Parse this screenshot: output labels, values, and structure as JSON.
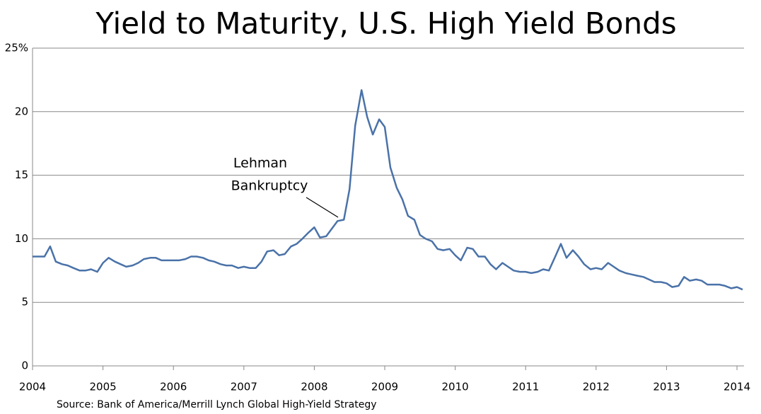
{
  "chart_data": {
    "type": "line",
    "title": "Yield to Maturity, U.S. High Yield Bonds",
    "source": "Source: Bank of America/Merrill Lynch Global High-Yield Strategy",
    "annotation": [
      "Lehman",
      "Bankruptcy"
    ],
    "xlim": [
      2004,
      2014.1
    ],
    "xticks": [
      2004,
      2005,
      2006,
      2007,
      2008,
      2009,
      2010,
      2011,
      2012,
      2013,
      2014
    ],
    "ylim": [
      0,
      25
    ],
    "yticks": [
      0,
      5,
      10,
      15,
      20,
      {
        "value": 25,
        "label": "25%"
      }
    ],
    "grid": true,
    "series": [
      {
        "color": "#4a72a8",
        "x": [
          2004.0,
          2004.08,
          2004.17,
          2004.25,
          2004.33,
          2004.42,
          2004.5,
          2004.58,
          2004.67,
          2004.75,
          2004.83,
          2004.92,
          2005.0,
          2005.08,
          2005.17,
          2005.25,
          2005.33,
          2005.42,
          2005.5,
          2005.58,
          2005.67,
          2005.75,
          2005.83,
          2005.92,
          2006.0,
          2006.08,
          2006.17,
          2006.25,
          2006.33,
          2006.42,
          2006.5,
          2006.58,
          2006.67,
          2006.75,
          2006.83,
          2006.92,
          2007.0,
          2007.08,
          2007.17,
          2007.25,
          2007.33,
          2007.42,
          2007.5,
          2007.58,
          2007.67,
          2007.75,
          2007.83,
          2007.92,
          2008.0,
          2008.08,
          2008.17,
          2008.25,
          2008.33,
          2008.42,
          2008.5,
          2008.58,
          2008.67,
          2008.75,
          2008.83,
          2008.92,
          2009.0,
          2009.08,
          2009.17,
          2009.25,
          2009.33,
          2009.42,
          2009.5,
          2009.58,
          2009.67,
          2009.75,
          2009.83,
          2009.92,
          2010.0,
          2010.08,
          2010.17,
          2010.25,
          2010.33,
          2010.42,
          2010.5,
          2010.58,
          2010.67,
          2010.75,
          2010.83,
          2010.92,
          2011.0,
          2011.08,
          2011.17,
          2011.25,
          2011.33,
          2011.42,
          2011.5,
          2011.58,
          2011.67,
          2011.75,
          2011.83,
          2011.92,
          2012.0,
          2012.08,
          2012.17,
          2012.25,
          2012.33,
          2012.42,
          2012.5,
          2012.58,
          2012.67,
          2012.75,
          2012.83,
          2012.92,
          2013.0,
          2013.08,
          2013.17,
          2013.25,
          2013.33,
          2013.42,
          2013.5,
          2013.58,
          2013.67,
          2013.75,
          2013.83,
          2013.92,
          2014.0,
          2014.08
        ],
        "values": [
          8.6,
          8.6,
          8.6,
          9.4,
          8.2,
          8.0,
          7.9,
          7.7,
          7.5,
          7.5,
          7.6,
          7.4,
          8.1,
          8.5,
          8.2,
          8.0,
          7.8,
          7.9,
          8.1,
          8.4,
          8.5,
          8.5,
          8.3,
          8.3,
          8.3,
          8.3,
          8.4,
          8.6,
          8.6,
          8.5,
          8.3,
          8.2,
          8.0,
          7.9,
          7.9,
          7.7,
          7.8,
          7.7,
          7.7,
          8.2,
          9.0,
          9.1,
          8.7,
          8.8,
          9.4,
          9.6,
          10.0,
          10.5,
          10.9,
          10.1,
          10.2,
          10.8,
          11.4,
          11.5,
          13.9,
          18.9,
          21.7,
          19.6,
          18.2,
          19.4,
          18.8,
          15.6,
          14.0,
          13.1,
          11.8,
          11.5,
          10.3,
          10.0,
          9.8,
          9.2,
          9.1,
          9.2,
          8.7,
          8.3,
          9.3,
          9.2,
          8.6,
          8.6,
          8.0,
          7.6,
          8.1,
          7.8,
          7.5,
          7.4,
          7.4,
          7.3,
          7.4,
          7.6,
          7.5,
          8.6,
          9.6,
          8.5,
          9.1,
          8.6,
          8.0,
          7.6,
          7.7,
          7.6,
          8.1,
          7.8,
          7.5,
          7.3,
          7.2,
          7.1,
          7.0,
          6.8,
          6.6,
          6.6,
          6.5,
          6.2,
          6.3,
          7.0,
          6.7,
          6.8,
          6.7,
          6.4,
          6.4,
          6.4,
          6.3,
          6.1,
          6.2,
          6.0
        ]
      }
    ]
  }
}
